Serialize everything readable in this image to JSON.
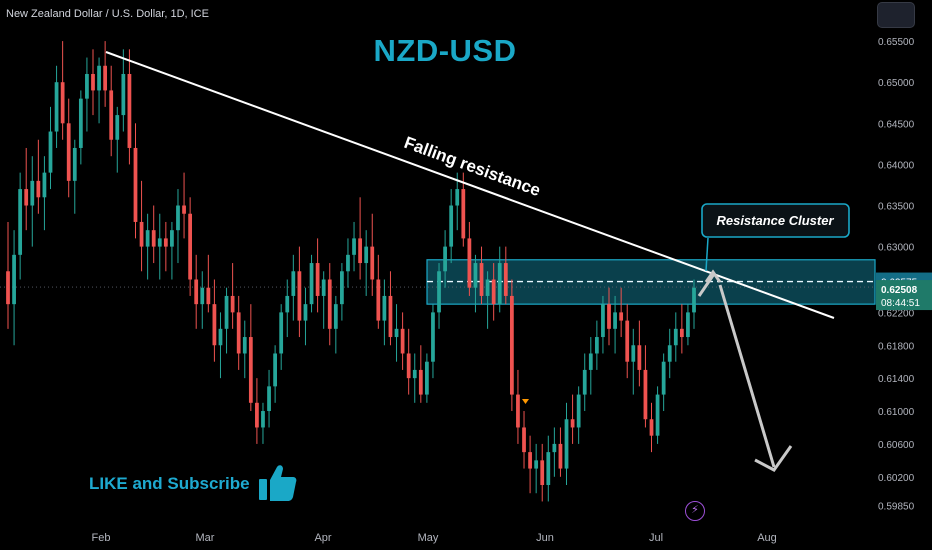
{
  "header": {
    "symbol": "New Zealand Dollar / U.S. Dollar, 1D, ICE"
  },
  "title": "NZD-USD",
  "cta": "LIKE and Subscribe",
  "icons": {
    "like": "thumbs-up-icon",
    "bolt": "lightning-icon",
    "corner": "menu-button"
  },
  "colors": {
    "up": "#26a69a",
    "down": "#ef5350",
    "accent": "#1aa8c7",
    "zone": "#1aa8c7"
  },
  "chart_data": {
    "type": "candlestick",
    "price_ticks": [
      "0.65500",
      "0.65000",
      "0.64500",
      "0.64000",
      "0.63500",
      "0.63000",
      "0.62200",
      "0.61800",
      "0.61400",
      "0.61000",
      "0.60600",
      "0.60200",
      "0.59850"
    ],
    "month_ticks": [
      "Feb",
      "Mar",
      "Apr",
      "May",
      "Jun",
      "Jul",
      "Aug"
    ],
    "current_price": "0.62508",
    "countdown": "08:44:51",
    "level_price": "0.62575",
    "annotations": {
      "trendline": "Falling resistance",
      "zone": "Resistance Cluster"
    },
    "ylim": [
      0.5965,
      0.66
    ],
    "candles": [
      [
        0.627,
        0.633,
        0.62,
        0.623
      ],
      [
        0.623,
        0.632,
        0.618,
        0.629
      ],
      [
        0.629,
        0.639,
        0.626,
        0.637
      ],
      [
        0.637,
        0.642,
        0.632,
        0.635
      ],
      [
        0.635,
        0.641,
        0.63,
        0.638
      ],
      [
        0.638,
        0.643,
        0.634,
        0.636
      ],
      [
        0.636,
        0.641,
        0.632,
        0.639
      ],
      [
        0.639,
        0.647,
        0.637,
        0.644
      ],
      [
        0.644,
        0.652,
        0.642,
        0.65
      ],
      [
        0.65,
        0.655,
        0.643,
        0.645
      ],
      [
        0.645,
        0.648,
        0.636,
        0.638
      ],
      [
        0.638,
        0.643,
        0.634,
        0.642
      ],
      [
        0.642,
        0.649,
        0.64,
        0.648
      ],
      [
        0.648,
        0.653,
        0.644,
        0.651
      ],
      [
        0.651,
        0.654,
        0.646,
        0.649
      ],
      [
        0.649,
        0.653,
        0.645,
        0.652
      ],
      [
        0.652,
        0.655,
        0.647,
        0.649
      ],
      [
        0.649,
        0.652,
        0.641,
        0.643
      ],
      [
        0.643,
        0.647,
        0.639,
        0.646
      ],
      [
        0.646,
        0.654,
        0.644,
        0.651
      ],
      [
        0.651,
        0.654,
        0.64,
        0.642
      ],
      [
        0.642,
        0.645,
        0.631,
        0.633
      ],
      [
        0.633,
        0.638,
        0.627,
        0.63
      ],
      [
        0.63,
        0.634,
        0.626,
        0.632
      ],
      [
        0.632,
        0.635,
        0.628,
        0.63
      ],
      [
        0.63,
        0.634,
        0.626,
        0.631
      ],
      [
        0.631,
        0.633,
        0.627,
        0.63
      ],
      [
        0.63,
        0.633,
        0.626,
        0.632
      ],
      [
        0.632,
        0.637,
        0.628,
        0.635
      ],
      [
        0.635,
        0.639,
        0.631,
        0.634
      ],
      [
        0.634,
        0.636,
        0.624,
        0.626
      ],
      [
        0.626,
        0.629,
        0.62,
        0.623
      ],
      [
        0.623,
        0.627,
        0.62,
        0.625
      ],
      [
        0.625,
        0.629,
        0.622,
        0.623
      ],
      [
        0.623,
        0.626,
        0.616,
        0.618
      ],
      [
        0.618,
        0.622,
        0.614,
        0.62
      ],
      [
        0.62,
        0.625,
        0.617,
        0.624
      ],
      [
        0.624,
        0.628,
        0.62,
        0.622
      ],
      [
        0.622,
        0.624,
        0.615,
        0.617
      ],
      [
        0.617,
        0.621,
        0.614,
        0.619
      ],
      [
        0.619,
        0.623,
        0.61,
        0.611
      ],
      [
        0.611,
        0.614,
        0.606,
        0.608
      ],
      [
        0.608,
        0.611,
        0.606,
        0.61
      ],
      [
        0.61,
        0.615,
        0.608,
        0.613
      ],
      [
        0.613,
        0.618,
        0.611,
        0.617
      ],
      [
        0.617,
        0.623,
        0.615,
        0.622
      ],
      [
        0.622,
        0.626,
        0.619,
        0.624
      ],
      [
        0.624,
        0.629,
        0.621,
        0.627
      ],
      [
        0.627,
        0.63,
        0.619,
        0.621
      ],
      [
        0.621,
        0.625,
        0.618,
        0.623
      ],
      [
        0.623,
        0.629,
        0.622,
        0.628
      ],
      [
        0.628,
        0.631,
        0.622,
        0.624
      ],
      [
        0.624,
        0.627,
        0.62,
        0.626
      ],
      [
        0.626,
        0.628,
        0.618,
        0.62
      ],
      [
        0.62,
        0.624,
        0.617,
        0.623
      ],
      [
        0.623,
        0.628,
        0.621,
        0.627
      ],
      [
        0.627,
        0.631,
        0.625,
        0.629
      ],
      [
        0.629,
        0.633,
        0.627,
        0.631
      ],
      [
        0.631,
        0.636,
        0.626,
        0.628
      ],
      [
        0.628,
        0.632,
        0.624,
        0.63
      ],
      [
        0.63,
        0.634,
        0.624,
        0.626
      ],
      [
        0.626,
        0.629,
        0.62,
        0.621
      ],
      [
        0.621,
        0.626,
        0.618,
        0.624
      ],
      [
        0.624,
        0.627,
        0.618,
        0.619
      ],
      [
        0.619,
        0.623,
        0.616,
        0.62
      ],
      [
        0.62,
        0.622,
        0.615,
        0.617
      ],
      [
        0.617,
        0.62,
        0.612,
        0.614
      ],
      [
        0.614,
        0.617,
        0.611,
        0.615
      ],
      [
        0.615,
        0.618,
        0.611,
        0.612
      ],
      [
        0.612,
        0.617,
        0.611,
        0.616
      ],
      [
        0.616,
        0.623,
        0.614,
        0.622
      ],
      [
        0.622,
        0.628,
        0.62,
        0.627
      ],
      [
        0.627,
        0.632,
        0.625,
        0.63
      ],
      [
        0.63,
        0.637,
        0.628,
        0.635
      ],
      [
        0.635,
        0.639,
        0.632,
        0.637
      ],
      [
        0.637,
        0.639,
        0.63,
        0.631
      ],
      [
        0.631,
        0.633,
        0.624,
        0.625
      ],
      [
        0.625,
        0.629,
        0.622,
        0.628
      ],
      [
        0.628,
        0.63,
        0.623,
        0.624
      ],
      [
        0.624,
        0.627,
        0.62,
        0.626
      ],
      [
        0.626,
        0.628,
        0.621,
        0.623
      ],
      [
        0.623,
        0.63,
        0.622,
        0.628
      ],
      [
        0.628,
        0.63,
        0.623,
        0.624
      ],
      [
        0.624,
        0.626,
        0.61,
        0.612
      ],
      [
        0.612,
        0.615,
        0.606,
        0.608
      ],
      [
        0.608,
        0.61,
        0.603,
        0.605
      ],
      [
        0.605,
        0.607,
        0.6,
        0.603
      ],
      [
        0.603,
        0.606,
        0.6,
        0.604
      ],
      [
        0.604,
        0.606,
        0.599,
        0.601
      ],
      [
        0.601,
        0.607,
        0.599,
        0.605
      ],
      [
        0.605,
        0.608,
        0.602,
        0.606
      ],
      [
        0.606,
        0.608,
        0.602,
        0.603
      ],
      [
        0.603,
        0.611,
        0.601,
        0.609
      ],
      [
        0.609,
        0.612,
        0.606,
        0.608
      ],
      [
        0.608,
        0.613,
        0.606,
        0.612
      ],
      [
        0.612,
        0.617,
        0.61,
        0.615
      ],
      [
        0.615,
        0.619,
        0.612,
        0.617
      ],
      [
        0.617,
        0.621,
        0.615,
        0.619
      ],
      [
        0.619,
        0.624,
        0.617,
        0.623
      ],
      [
        0.623,
        0.625,
        0.618,
        0.62
      ],
      [
        0.62,
        0.624,
        0.617,
        0.622
      ],
      [
        0.622,
        0.625,
        0.619,
        0.621
      ],
      [
        0.621,
        0.623,
        0.614,
        0.616
      ],
      [
        0.616,
        0.62,
        0.612,
        0.618
      ],
      [
        0.618,
        0.621,
        0.613,
        0.615
      ],
      [
        0.615,
        0.618,
        0.608,
        0.609
      ],
      [
        0.609,
        0.611,
        0.605,
        0.607
      ],
      [
        0.607,
        0.613,
        0.606,
        0.612
      ],
      [
        0.612,
        0.617,
        0.61,
        0.616
      ],
      [
        0.616,
        0.62,
        0.614,
        0.618
      ],
      [
        0.618,
        0.622,
        0.616,
        0.62
      ],
      [
        0.62,
        0.623,
        0.617,
        0.619
      ],
      [
        0.619,
        0.623,
        0.618,
        0.622
      ],
      [
        0.622,
        0.626,
        0.62,
        0.625
      ]
    ]
  }
}
